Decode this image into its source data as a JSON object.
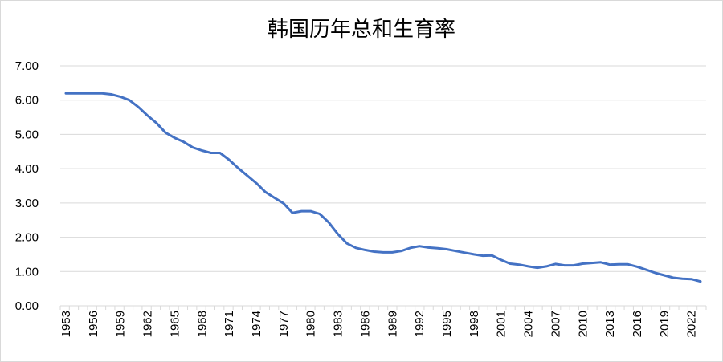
{
  "chart_data": {
    "type": "line",
    "title": "韩国历年总和生育率",
    "xlabel": "",
    "ylabel": "",
    "ylim": [
      0,
      7
    ],
    "yticks": [
      "0.00",
      "1.00",
      "2.00",
      "3.00",
      "4.00",
      "5.00",
      "6.00",
      "7.00"
    ],
    "xticks": [
      "1953",
      "1956",
      "1959",
      "1962",
      "1965",
      "1968",
      "1971",
      "1974",
      "1977",
      "1980",
      "1983",
      "1986",
      "1989",
      "1992",
      "1995",
      "1998",
      "2001",
      "2004",
      "2007",
      "2010",
      "2013",
      "2016",
      "2019",
      "2022"
    ],
    "grid": true,
    "legend": "none",
    "line_color": "#4472c4",
    "grid_color": "#d9d9d9",
    "x": [
      1953,
      1954,
      1955,
      1956,
      1957,
      1958,
      1959,
      1960,
      1961,
      1962,
      1963,
      1964,
      1965,
      1966,
      1967,
      1968,
      1969,
      1970,
      1971,
      1972,
      1973,
      1974,
      1975,
      1976,
      1977,
      1978,
      1979,
      1980,
      1981,
      1982,
      1983,
      1984,
      1985,
      1986,
      1987,
      1988,
      1989,
      1990,
      1991,
      1992,
      1993,
      1994,
      1995,
      1996,
      1997,
      1998,
      1999,
      2000,
      2001,
      2002,
      2003,
      2004,
      2005,
      2006,
      2007,
      2008,
      2009,
      2010,
      2011,
      2012,
      2013,
      2014,
      2015,
      2016,
      2017,
      2018,
      2019,
      2020,
      2021,
      2022,
      2023
    ],
    "values": [
      6.2,
      6.2,
      6.2,
      6.2,
      6.2,
      6.17,
      6.1,
      6.0,
      5.8,
      5.55,
      5.33,
      5.05,
      4.9,
      4.78,
      4.62,
      4.53,
      4.46,
      4.46,
      4.26,
      4.02,
      3.8,
      3.58,
      3.32,
      3.15,
      2.99,
      2.71,
      2.76,
      2.76,
      2.68,
      2.43,
      2.09,
      1.82,
      1.69,
      1.63,
      1.58,
      1.56,
      1.56,
      1.6,
      1.69,
      1.74,
      1.7,
      1.68,
      1.65,
      1.6,
      1.55,
      1.5,
      1.46,
      1.47,
      1.34,
      1.23,
      1.2,
      1.15,
      1.11,
      1.15,
      1.22,
      1.18,
      1.18,
      1.23,
      1.25,
      1.27,
      1.2,
      1.21,
      1.21,
      1.14,
      1.05,
      0.96,
      0.89,
      0.82,
      0.79,
      0.78,
      0.71
    ]
  }
}
